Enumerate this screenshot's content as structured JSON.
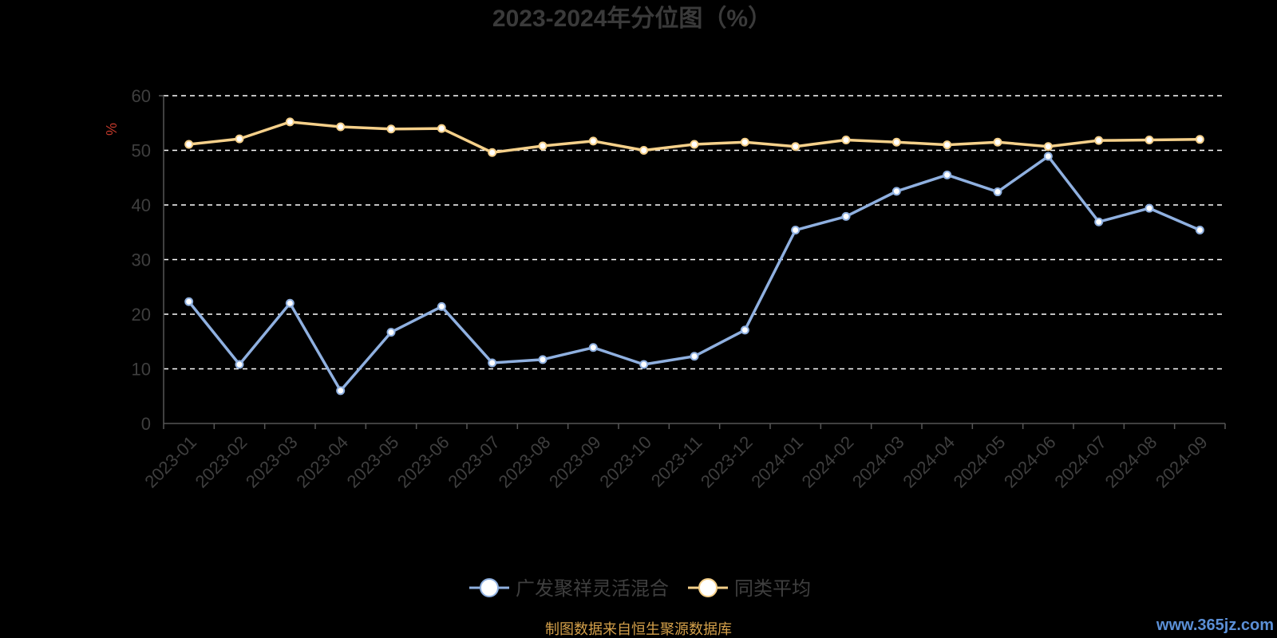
{
  "chart_data": {
    "type": "line",
    "title": "2023-2024年分位图（%）",
    "ylabel": "%",
    "ylim": [
      0,
      60
    ],
    "yticks": [
      0,
      10,
      20,
      30,
      40,
      50,
      60
    ],
    "grid": true,
    "legend_position": "bottom",
    "categories": [
      "2023-01",
      "2023-02",
      "2023-03",
      "2023-04",
      "2023-05",
      "2023-06",
      "2023-07",
      "2023-08",
      "2023-09",
      "2023-10",
      "2023-11",
      "2023-12",
      "2024-01",
      "2024-02",
      "2024-03",
      "2024-04",
      "2024-05",
      "2024-06",
      "2024-07",
      "2024-08",
      "2024-09"
    ],
    "series": [
      {
        "name": "广发聚祥灵活混合",
        "color": "#8fb0e0",
        "values": [
          22.3,
          10.8,
          22.0,
          6.0,
          16.7,
          21.4,
          11.1,
          11.7,
          13.9,
          10.8,
          12.3,
          17.1,
          35.4,
          37.9,
          42.5,
          45.5,
          42.4,
          48.9,
          36.9,
          39.4,
          35.4
        ]
      },
      {
        "name": "同类平均",
        "color": "#f5d08a",
        "values": [
          51.1,
          52.1,
          55.2,
          54.3,
          53.9,
          54.0,
          49.6,
          50.8,
          51.7,
          50.0,
          51.1,
          51.5,
          50.7,
          51.9,
          51.5,
          51.0,
          51.5,
          50.7,
          51.8,
          51.9,
          52.0
        ]
      }
    ]
  },
  "source_note": "制图数据来自恒生聚源数据库",
  "watermark": "www.365jz.com"
}
